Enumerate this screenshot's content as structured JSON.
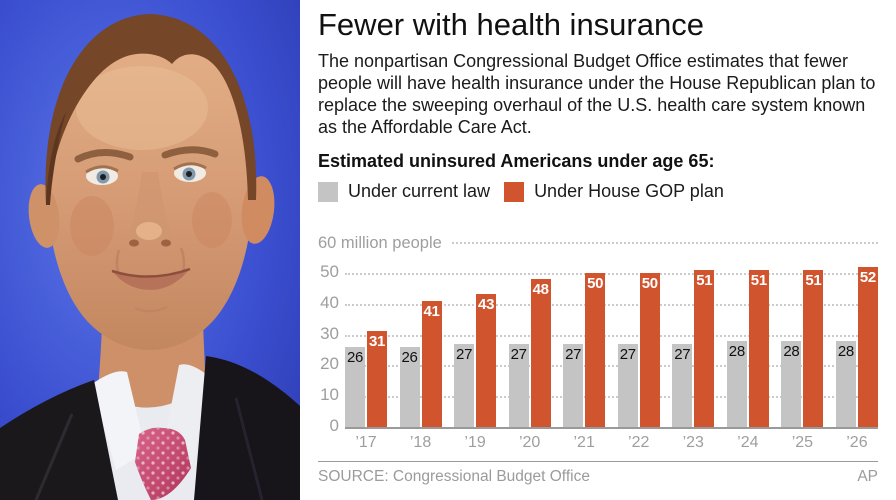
{
  "photo": {
    "description": "Close-up of a man in a dark suit, white shirt and pink patterned tie speaking in front of a blue TV-studio background"
  },
  "infographic": {
    "title": "Fewer with health insurance",
    "description": "The nonpartisan Congressional Budget Office estimates that fewer people will have health insurance under the House Republican plan to replace the sweeping overhaul of the U.S. health care system known as the Affordable Care Act.",
    "chart_heading": "Estimated uninsured Americans under age 65:",
    "legend": [
      {
        "label": "Under current law",
        "color": "#c4c4c5"
      },
      {
        "label": "Under House GOP plan",
        "color": "#d0552e"
      }
    ],
    "y_axis_top_label": "60 million people",
    "source": "SOURCE: Congressional Budget Office",
    "credit": "AP"
  },
  "chart_data": {
    "type": "bar",
    "title": "Estimated uninsured Americans under age 65",
    "categories": [
      "’17",
      "’18",
      "’19",
      "’20",
      "’21",
      "’22",
      "’23",
      "’24",
      "’25",
      "’26"
    ],
    "series": [
      {
        "name": "Under current law",
        "color": "#c4c4c5",
        "label_color": "#111111",
        "values": [
          26,
          26,
          27,
          27,
          27,
          27,
          27,
          28,
          28,
          28
        ]
      },
      {
        "name": "Under House GOP plan",
        "color": "#d0552e",
        "label_color": "#ffffff",
        "values": [
          31,
          41,
          43,
          48,
          50,
          50,
          51,
          51,
          51,
          52
        ]
      }
    ],
    "ylabel": "60 million people",
    "ylim": [
      0,
      60
    ],
    "yticks": [
      0,
      10,
      20,
      30,
      40,
      50
    ],
    "grid": "dotted horizontal",
    "legend_position": "top"
  }
}
